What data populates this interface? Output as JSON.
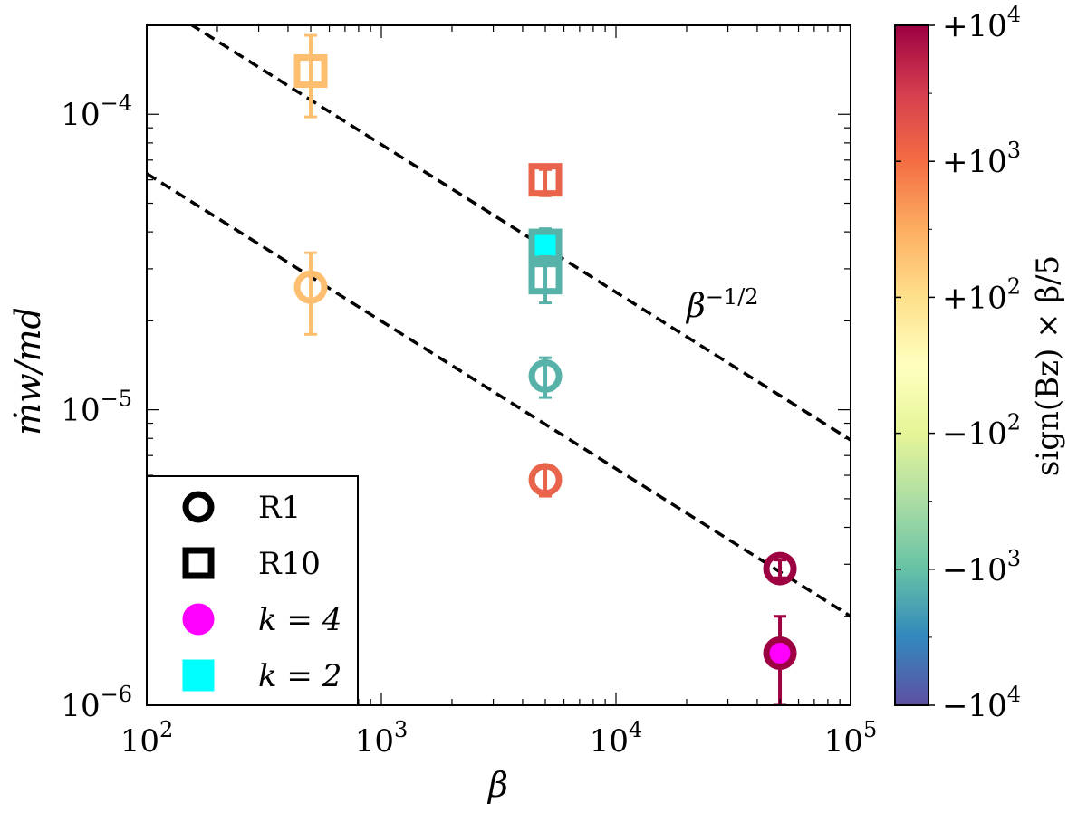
{
  "chart_data": {
    "type": "scatter",
    "xscale": "log",
    "yscale": "log",
    "xlim": [
      100,
      100000
    ],
    "ylim": [
      1e-06,
      0.0002
    ],
    "xlabel": "β",
    "ylabel": "ṁw/md",
    "x_ticks": [
      {
        "value": 100,
        "base": "10",
        "exp": "2"
      },
      {
        "value": 1000,
        "base": "10",
        "exp": "3"
      },
      {
        "value": 10000,
        "base": "10",
        "exp": "4"
      },
      {
        "value": 100000,
        "base": "10",
        "exp": "5"
      }
    ],
    "y_ticks": [
      {
        "value": 0.0001,
        "base": "10",
        "exp": "−4"
      },
      {
        "value": 1e-05,
        "base": "10",
        "exp": "−5"
      },
      {
        "value": 1e-06,
        "base": "10",
        "exp": "−6"
      }
    ],
    "series": [
      {
        "name": "R1 β=500",
        "marker": "circle",
        "filled": false,
        "color": "#fdbf6f",
        "x": 500,
        "y": 2.6e-05,
        "yerr_low": 1.8e-05,
        "yerr_high": 3.4e-05
      },
      {
        "name": "R10 β=500",
        "marker": "square",
        "filled": false,
        "color": "#fdbf6f",
        "x": 500,
        "y": 0.00014,
        "yerr_low": 9.8e-05,
        "yerr_high": 0.000185
      },
      {
        "name": "R10 β=5000 (+)",
        "marker": "square",
        "filled": false,
        "color": "#e9644a",
        "x": 5000,
        "y": 6e-05,
        "yerr_low": 5.3e-05,
        "yerr_high": 6.5e-05
      },
      {
        "name": "R10 k=2 β=5000 (−)",
        "marker": "square",
        "filled": true,
        "color": "#57b3a9",
        "x": 5000,
        "y": 3.6e-05,
        "yerr_low": 3.1e-05,
        "yerr_high": 4.1e-05
      },
      {
        "name": "R10 β=5000 (−)",
        "marker": "square",
        "filled": false,
        "color": "#57b3a9",
        "x": 5000,
        "y": 2.8e-05,
        "yerr_low": 2.3e-05,
        "yerr_high": 3.3e-05
      },
      {
        "name": "R1 β=5000 (−)",
        "marker": "circle",
        "filled": false,
        "color": "#57b3a9",
        "x": 5000,
        "y": 1.3e-05,
        "yerr_low": 1.1e-05,
        "yerr_high": 1.5e-05
      },
      {
        "name": "R1 β=5000 (+)",
        "marker": "circle",
        "filled": false,
        "color": "#e9644a",
        "x": 5000,
        "y": 5.8e-06,
        "yerr_low": 5.1e-06,
        "yerr_high": 6.4e-06
      },
      {
        "name": "R1 β=50000",
        "marker": "circle",
        "filled": false,
        "color": "#9e0142",
        "x": 50000,
        "y": 2.9e-06,
        "yerr_low": 2.7e-06,
        "yerr_high": 3.1e-06
      },
      {
        "name": "R1 k=4 β=50000",
        "marker": "circle",
        "filled": true,
        "color": "#9e0142",
        "x": 50000,
        "y": 1.5e-06,
        "yerr_low": 1e-06,
        "yerr_high": 2e-06
      }
    ],
    "fit_lines": [
      {
        "name": "upper",
        "slope": -0.5,
        "x": [
          100,
          100000
        ],
        "y": [
          0.00025,
          7.9e-06
        ],
        "style": "dashed"
      },
      {
        "name": "lower",
        "slope": -0.5,
        "x": [
          100,
          100000
        ],
        "y": [
          6.3e-05,
          2e-06
        ],
        "style": "dashed"
      }
    ],
    "annotation": {
      "text": "β",
      "sup": "−1/2",
      "x": 20000,
      "y": 2.4e-05
    },
    "legend": {
      "placement": "bottom-left",
      "items": [
        {
          "label": "R1",
          "marker": "circle",
          "filled": false,
          "color": "#000000"
        },
        {
          "label": "R10",
          "marker": "square",
          "filled": false,
          "color": "#000000"
        },
        {
          "label": "k = 4",
          "marker": "circle",
          "filled": true,
          "color": "#ff00ff"
        },
        {
          "label": "k = 2",
          "marker": "square",
          "filled": true,
          "color": "#00ffff"
        }
      ]
    },
    "colorbar": {
      "label": "sign(Bz) × β/5",
      "colormap": "Spectral",
      "ticks": [
        "+10",
        "+10",
        "+10",
        "−10",
        "−10",
        "−10"
      ],
      "tick_exps": [
        "4",
        "3",
        "2",
        "2",
        "3",
        "4"
      ],
      "tick_values": [
        10000,
        1000,
        100,
        -100,
        -1000,
        -10000
      ],
      "stops": [
        "#9e0142",
        "#d53e4f",
        "#f46d43",
        "#fdae61",
        "#fee08b",
        "#ffffbf",
        "#e6f598",
        "#abdda4",
        "#66c2a5",
        "#3288bd",
        "#5e4fa2"
      ]
    }
  }
}
